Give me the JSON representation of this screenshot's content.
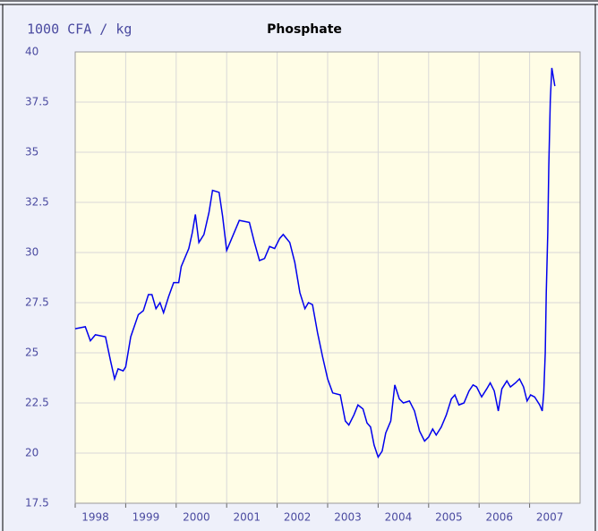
{
  "chart_data": {
    "type": "line",
    "title": "Phosphate",
    "y_label": "1000 CFA / kg",
    "x": [
      1998.0,
      1998.2,
      1998.3,
      1998.4,
      1998.6,
      1998.7,
      1998.78,
      1998.85,
      1998.95,
      1999.0,
      1999.1,
      1999.25,
      1999.35,
      1999.45,
      1999.52,
      1999.6,
      1999.68,
      1999.75,
      1999.85,
      1999.95,
      2000.05,
      2000.1,
      2000.25,
      2000.32,
      2000.38,
      2000.45,
      2000.55,
      2000.65,
      2000.72,
      2000.85,
      2000.92,
      2001.0,
      2001.1,
      2001.25,
      2001.45,
      2001.55,
      2001.65,
      2001.75,
      2001.85,
      2001.95,
      2002.05,
      2002.12,
      2002.25,
      2002.35,
      2002.45,
      2002.55,
      2002.62,
      2002.7,
      2002.8,
      2002.9,
      2003.0,
      2003.1,
      2003.25,
      2003.35,
      2003.42,
      2003.52,
      2003.6,
      2003.7,
      2003.78,
      2003.85,
      2003.92,
      2004.0,
      2004.08,
      2004.15,
      2004.25,
      2004.33,
      2004.42,
      2004.5,
      2004.62,
      2004.72,
      2004.82,
      2004.92,
      2005.0,
      2005.08,
      2005.15,
      2005.25,
      2005.35,
      2005.45,
      2005.52,
      2005.6,
      2005.7,
      2005.8,
      2005.88,
      2005.95,
      2006.05,
      2006.15,
      2006.22,
      2006.3,
      2006.38,
      2006.45,
      2006.55,
      2006.62,
      2006.72,
      2006.8,
      2006.88,
      2006.95,
      2007.02,
      2007.1,
      2007.2,
      2007.25,
      2007.28,
      2007.31,
      2007.33,
      2007.36,
      2007.38,
      2007.41,
      2007.44,
      2007.5
    ],
    "series": [
      {
        "name": "Phosphate",
        "color": "#0000ee",
        "values": [
          26.2,
          26.3,
          25.6,
          25.9,
          25.8,
          24.6,
          23.7,
          24.2,
          24.1,
          24.3,
          25.8,
          26.9,
          27.1,
          27.9,
          27.9,
          27.2,
          27.5,
          27.0,
          27.8,
          28.5,
          28.5,
          29.3,
          30.2,
          31.0,
          31.9,
          30.5,
          30.9,
          32.0,
          33.1,
          33.0,
          31.8,
          30.1,
          30.7,
          31.6,
          31.5,
          30.5,
          29.6,
          29.7,
          30.3,
          30.2,
          30.7,
          30.9,
          30.5,
          29.5,
          28.0,
          27.2,
          27.5,
          27.4,
          26.0,
          24.8,
          23.7,
          23.0,
          22.9,
          21.6,
          21.4,
          21.9,
          22.4,
          22.2,
          21.5,
          21.3,
          20.4,
          19.8,
          20.1,
          21.0,
          21.6,
          23.4,
          22.7,
          22.5,
          22.6,
          22.1,
          21.1,
          20.6,
          20.8,
          21.2,
          20.9,
          21.3,
          21.9,
          22.7,
          22.9,
          22.4,
          22.5,
          23.1,
          23.4,
          23.3,
          22.8,
          23.2,
          23.5,
          23.1,
          22.1,
          23.2,
          23.6,
          23.3,
          23.5,
          23.7,
          23.3,
          22.6,
          22.9,
          22.8,
          22.4,
          22.1,
          23.0,
          25.0,
          28.0,
          31.0,
          34.3,
          37.6,
          39.2,
          38.3
        ]
      }
    ],
    "xlim": [
      1998,
      2008
    ],
    "xticks": [
      1998,
      1999,
      2000,
      2001,
      2002,
      2003,
      2004,
      2005,
      2006,
      2007
    ],
    "ylim": [
      17.5,
      40
    ],
    "yticks": [
      17.5,
      20,
      22.5,
      25,
      27.5,
      30,
      32.5,
      35,
      37.5,
      40
    ],
    "grid": true
  }
}
